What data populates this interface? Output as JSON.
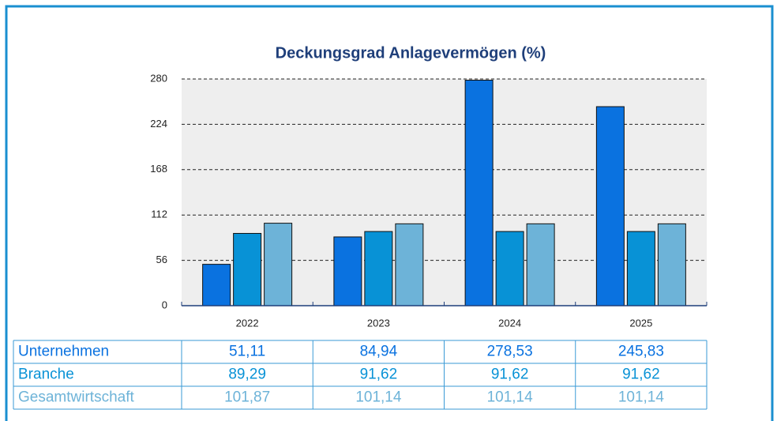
{
  "chart_data": {
    "type": "bar",
    "title": "Deckungsgrad Anlagevermögen (%)",
    "categories": [
      "2022",
      "2023",
      "2024",
      "2025"
    ],
    "series": [
      {
        "name": "Unternehmen",
        "color": "#0a72e0",
        "values": [
          51.11,
          84.94,
          278.53,
          245.83
        ],
        "value_labels": [
          "51,11",
          "84,94",
          "278,53",
          "245,83"
        ]
      },
      {
        "name": "Branche",
        "color": "#0892d6",
        "values": [
          89.29,
          91.62,
          91.62,
          91.62
        ],
        "value_labels": [
          "89,29",
          "91,62",
          "91,62",
          "91,62"
        ]
      },
      {
        "name": "Gesamtwirtschaft",
        "color": "#6db3d8",
        "values": [
          101.87,
          101.14,
          101.14,
          101.14
        ],
        "value_labels": [
          "101,87",
          "101,14",
          "101,14",
          "101,14"
        ]
      }
    ],
    "ylim": [
      0,
      280
    ],
    "yticks": [
      0,
      56,
      112,
      168,
      224,
      280
    ],
    "grid": true
  }
}
